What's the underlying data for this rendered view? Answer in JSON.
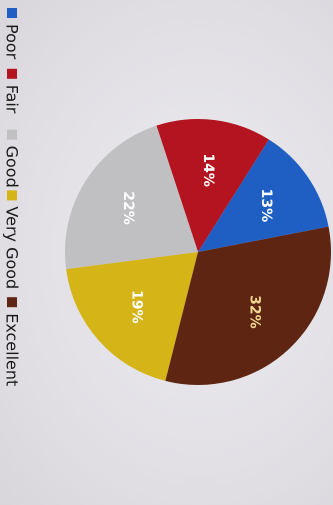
{
  "chart_data": {
    "type": "pie",
    "title": "",
    "slices": [
      {
        "label": "Poor",
        "value": 13,
        "display": "13%",
        "color": "#1f5fc4",
        "text_color": "#ffffff"
      },
      {
        "label": "Fair",
        "value": 14,
        "display": "14%",
        "color": "#b31420",
        "text_color": "#ffffff"
      },
      {
        "label": "Good",
        "value": 22,
        "display": "22%",
        "color": "#c0bfc2",
        "text_color": "#ffffff"
      },
      {
        "label": "Very Good",
        "value": 19,
        "display": "19%",
        "color": "#d4b417",
        "text_color": "#ffffff"
      },
      {
        "label": "Excellent",
        "value": 32,
        "display": "32%",
        "color": "#5e2512",
        "text_color": "#f0d890"
      }
    ],
    "legend_position": "left",
    "legend_orientation": "rotated",
    "label_orientation": "rotated"
  }
}
